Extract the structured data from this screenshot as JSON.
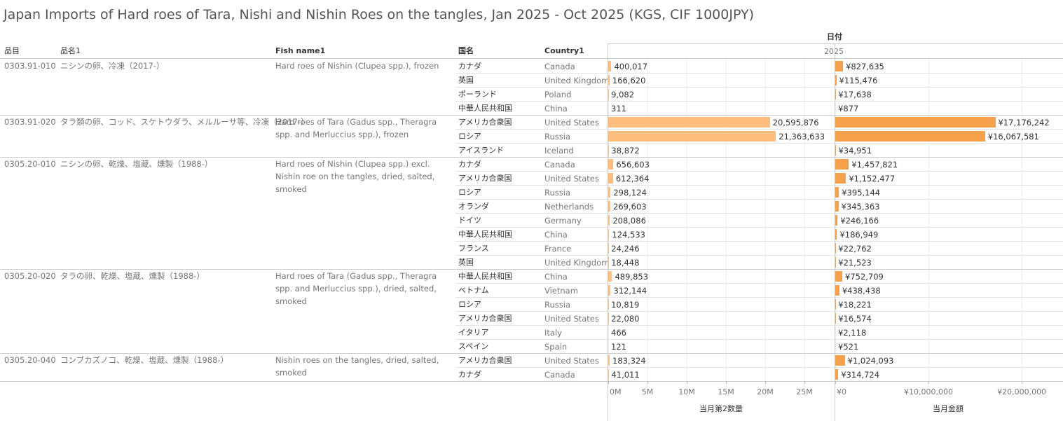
{
  "title": "Japan Imports of Hard roes of Tara, Nishi and Nishin Roes on the tangles, Jan 2025 - Oct 2025 (KGS, CIF 1000JPY)",
  "column_group_header": "日付",
  "year": "2025",
  "columns": [
    "品目",
    "品名1",
    "Fish name1",
    "国名",
    "Country1"
  ],
  "groups": [
    {
      "code": "0303.91-010",
      "name": "ニシンの卵、冷凍（2017-）",
      "fish_name": "Hard roes of Nishin (Clupea spp.), frozen",
      "rows": [
        {
          "country": "カナダ",
          "country_en": "Canada",
          "quantity": 400017,
          "quantity_label": "400,017",
          "amount": 827635,
          "amount_label": "¥827,635"
        },
        {
          "country": "英国",
          "country_en": "United Kingdom",
          "quantity": 166620,
          "quantity_label": "166,620",
          "amount": 115476,
          "amount_label": "¥115,476"
        },
        {
          "country": "ポーランド",
          "country_en": "Poland",
          "quantity": 9082,
          "quantity_label": "9,082",
          "amount": 17638,
          "amount_label": "¥17,638"
        },
        {
          "country": "中華人民共和国",
          "country_en": "China",
          "quantity": 311,
          "quantity_label": "311",
          "amount": 877,
          "amount_label": "¥877"
        }
      ]
    },
    {
      "code": "0303.91-020",
      "name": "タラ類の卵、コッド、スケトウダラ、メルルーサ等、冷凍（2017-）",
      "fish_name": "Hard roes of Tara (Gadus spp., Theragra spp. and Merluccius spp.), frozen",
      "rows": [
        {
          "country": "アメリカ合衆国",
          "country_en": "United States",
          "quantity": 20595876,
          "quantity_label": "20,595,876",
          "amount": 17176242,
          "amount_label": "¥17,176,242"
        },
        {
          "country": "ロシア",
          "country_en": "Russia",
          "quantity": 21363633,
          "quantity_label": "21,363,633",
          "amount": 16067581,
          "amount_label": "¥16,067,581"
        },
        {
          "country": "アイスランド",
          "country_en": "Iceland",
          "quantity": 38872,
          "quantity_label": "38,872",
          "amount": 34951,
          "amount_label": "¥34,951"
        }
      ]
    },
    {
      "code": "0305.20-010",
      "name": "ニシンの卵、乾燥、塩蔵、燻製（1988-）",
      "fish_name": "Hard roes of Nishin (Clupea spp.) excl. Nishin roe on the tangles, dried, salted, smoked",
      "rows": [
        {
          "country": "カナダ",
          "country_en": "Canada",
          "quantity": 656603,
          "quantity_label": "656,603",
          "amount": 1457821,
          "amount_label": "¥1,457,821"
        },
        {
          "country": "アメリカ合衆国",
          "country_en": "United States",
          "quantity": 612364,
          "quantity_label": "612,364",
          "amount": 1152477,
          "amount_label": "¥1,152,477"
        },
        {
          "country": "ロシア",
          "country_en": "Russia",
          "quantity": 298124,
          "quantity_label": "298,124",
          "amount": 395144,
          "amount_label": "¥395,144"
        },
        {
          "country": "オランダ",
          "country_en": "Netherlands",
          "quantity": 269603,
          "quantity_label": "269,603",
          "amount": 345363,
          "amount_label": "¥345,363"
        },
        {
          "country": "ドイツ",
          "country_en": "Germany",
          "quantity": 208086,
          "quantity_label": "208,086",
          "amount": 246166,
          "amount_label": "¥246,166"
        },
        {
          "country": "中華人民共和国",
          "country_en": "China",
          "quantity": 124533,
          "quantity_label": "124,533",
          "amount": 186949,
          "amount_label": "¥186,949"
        },
        {
          "country": "フランス",
          "country_en": "France",
          "quantity": 24246,
          "quantity_label": "24,246",
          "amount": 22762,
          "amount_label": "¥22,762"
        },
        {
          "country": "英国",
          "country_en": "United Kingdom",
          "quantity": 18448,
          "quantity_label": "18,448",
          "amount": 21523,
          "amount_label": "¥21,523"
        }
      ]
    },
    {
      "code": "0305.20-020",
      "name": "タラの卵、乾燥、塩蔵、燻製（1988-）",
      "fish_name": "Hard roes of Tara (Gadus spp., Theragra spp. and Merluccius spp.), dried, salted, smoked",
      "rows": [
        {
          "country": "中華人民共和国",
          "country_en": "China",
          "quantity": 489853,
          "quantity_label": "489,853",
          "amount": 752709,
          "amount_label": "¥752,709"
        },
        {
          "country": "ベトナム",
          "country_en": "Vietnam",
          "quantity": 312144,
          "quantity_label": "312,144",
          "amount": 438438,
          "amount_label": "¥438,438"
        },
        {
          "country": "ロシア",
          "country_en": "Russia",
          "quantity": 10819,
          "quantity_label": "10,819",
          "amount": 18221,
          "amount_label": "¥18,221"
        },
        {
          "country": "アメリカ合衆国",
          "country_en": "United States",
          "quantity": 22080,
          "quantity_label": "22,080",
          "amount": 16574,
          "amount_label": "¥16,574"
        },
        {
          "country": "イタリア",
          "country_en": "Italy",
          "quantity": 466,
          "quantity_label": "466",
          "amount": 2118,
          "amount_label": "¥2,118"
        },
        {
          "country": "スペイン",
          "country_en": "Spain",
          "quantity": 121,
          "quantity_label": "121",
          "amount": 521,
          "amount_label": "¥521"
        }
      ]
    },
    {
      "code": "0305.20-040",
      "name": "コンブカズノコ、乾燥、塩蔵、燻製（1988-）",
      "fish_name": "Nishin roes on the tangles, dried, salted, smoked",
      "rows": [
        {
          "country": "アメリカ合衆国",
          "country_en": "United States",
          "quantity": 183324,
          "quantity_label": "183,324",
          "amount": 1024093,
          "amount_label": "¥1,024,093"
        },
        {
          "country": "カナダ",
          "country_en": "Canada",
          "quantity": 41011,
          "quantity_label": "41,011",
          "amount": 314724,
          "amount_label": "¥314,724"
        }
      ]
    }
  ],
  "quantity_axis": {
    "title": "当月第2数量",
    "color": "#ffbe7d",
    "lim": [
      0,
      28750000
    ],
    "ticks": [
      {
        "value": 0,
        "label": "0M"
      },
      {
        "value": 5000000,
        "label": "5M"
      },
      {
        "value": 10000000,
        "label": "10M"
      },
      {
        "value": 15000000,
        "label": "15M"
      },
      {
        "value": 20000000,
        "label": "20M"
      },
      {
        "value": 25000000,
        "label": "25M"
      }
    ]
  },
  "amount_axis": {
    "title": "当月金額",
    "color": "#f5a04a",
    "lim": [
      0,
      24200000
    ],
    "ticks": [
      {
        "value": 0,
        "label": "¥0"
      },
      {
        "value": 10000000,
        "label": "¥10,000,000"
      },
      {
        "value": 20000000,
        "label": "¥20,000,000"
      }
    ]
  }
}
